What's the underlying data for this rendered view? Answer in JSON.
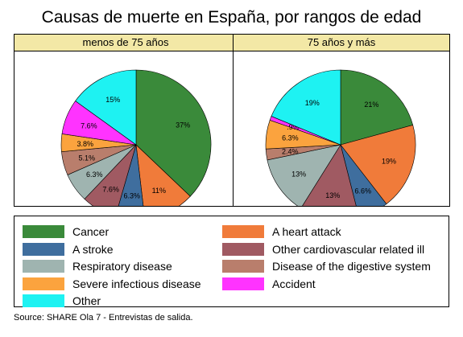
{
  "title": "Causas de muerte en España, por rangos de edad",
  "source": "Source: SHARE Ola 7 - Entrevistas de salida.",
  "chart_data": {
    "type": "pie",
    "categories": [
      "Cancer",
      "A heart attack",
      "A stroke",
      "Other cardiovascular related ill",
      "Respiratory disease",
      "Disease of the digestive system",
      "Severe infectious disease",
      "Accident",
      "Other"
    ],
    "colors": [
      "#3a8a3a",
      "#f07b3a",
      "#3f6e9e",
      "#a05a62",
      "#9fb4b0",
      "#b97e6c",
      "#fba33e",
      "#ff33ff",
      "#1ef2f2"
    ],
    "panels": [
      {
        "label": "menos de 75 años",
        "values": [
          37,
          11,
          6.3,
          7.6,
          6.3,
          5.1,
          3.8,
          7.6,
          15
        ],
        "labels": [
          "37%",
          "11%",
          "6.3%",
          "7.6%",
          "6.3%",
          "5.1%",
          "3.8%",
          "7.6%",
          "15%"
        ]
      },
      {
        "label": "75 años y más",
        "values": [
          21,
          19,
          6.6,
          13,
          13,
          2.4,
          6.3,
          0.9,
          19
        ],
        "labels": [
          "21%",
          "19%",
          "6.6%",
          "13%",
          "13%",
          "2.4%",
          "6.3%",
          ".9%",
          "19%"
        ]
      }
    ],
    "legend_placement": "bottom"
  }
}
